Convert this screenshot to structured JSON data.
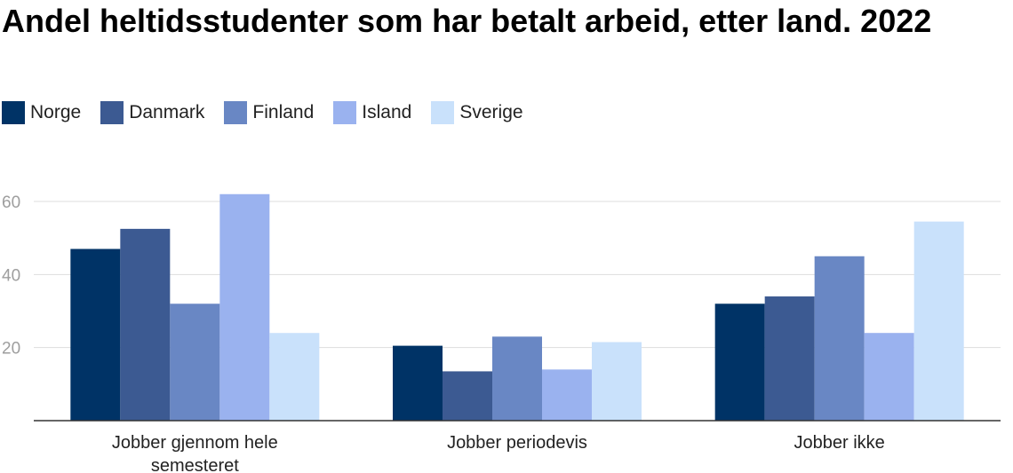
{
  "chart_data": {
    "type": "bar",
    "title": "Andel heltidsstudenter som har betalt arbeid, etter land. 2022",
    "categories": [
      "Jobber gjennom hele semesteret",
      "Jobber periodevis",
      "Jobber ikke"
    ],
    "category_lines": [
      [
        "Jobber gjennom hele",
        "semesteret"
      ],
      [
        "Jobber periodevis"
      ],
      [
        "Jobber ikke"
      ]
    ],
    "series": [
      {
        "name": "Norge",
        "color": "#003366",
        "values": [
          47,
          20.5,
          32
        ]
      },
      {
        "name": "Danmark",
        "color": "#3c5a92",
        "values": [
          52.5,
          13.5,
          34
        ]
      },
      {
        "name": "Finland",
        "color": "#6987c4",
        "values": [
          32,
          23,
          45
        ]
      },
      {
        "name": "Island",
        "color": "#9ab2ef",
        "values": [
          62,
          14,
          24
        ]
      },
      {
        "name": "Sverige",
        "color": "#c9e1fb",
        "values": [
          24,
          21.5,
          54.5
        ]
      }
    ],
    "yticks": [
      20,
      40,
      60
    ],
    "ylim": [
      0,
      65
    ],
    "xlabel": "",
    "ylabel": "",
    "grid": true,
    "legend_position": "top-left"
  }
}
